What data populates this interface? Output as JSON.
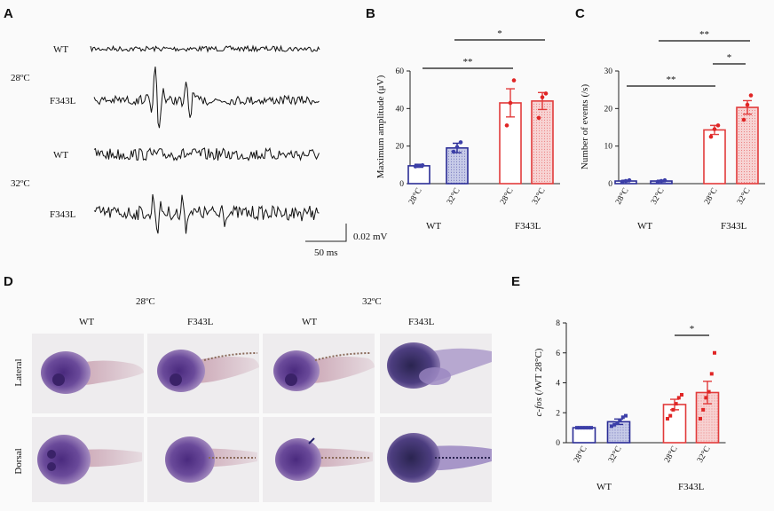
{
  "panels": {
    "A": {
      "letter": "A",
      "traces": [
        {
          "temp": "28ºC",
          "genotype": "WT"
        },
        {
          "temp": "28ºC",
          "genotype": "F343L"
        },
        {
          "temp": "32ºC",
          "genotype": "WT"
        },
        {
          "temp": "32ºC",
          "genotype": "F343L"
        }
      ],
      "temps": [
        "28ºC",
        "32ºC"
      ],
      "scalebar_v": "0.02 mV",
      "scalebar_t": "50 ms"
    },
    "B": {
      "letter": "B"
    },
    "C": {
      "letter": "C"
    },
    "D": {
      "letter": "D",
      "temps": [
        "28ºC",
        "32ºC"
      ],
      "columns": [
        "WT",
        "F343L",
        "WT",
        "F343L"
      ],
      "rows": [
        "Lateral",
        "Dorsal"
      ]
    },
    "E": {
      "letter": "E"
    }
  },
  "chart_data": [
    {
      "panel": "B",
      "type": "bar",
      "ylabel": "Maximum amplitude (μV)",
      "ylim": [
        0,
        60
      ],
      "yticks": [
        0,
        20,
        40,
        60
      ],
      "categories": [
        "28°C",
        "32°C",
        "28°C",
        "32°C"
      ],
      "groups": [
        "WT",
        "F343L"
      ],
      "values": [
        9.5,
        19,
        43,
        44
      ],
      "errors": [
        0.8,
        2.5,
        7.5,
        4.5
      ],
      "points": [
        [
          9.2,
          9.5,
          9.8
        ],
        [
          17,
          19.5,
          22
        ],
        [
          31,
          43,
          55
        ],
        [
          35,
          46,
          48
        ]
      ],
      "significance": [
        {
          "from": 0,
          "to": 2,
          "label": "**"
        },
        {
          "from": 1,
          "to": 3,
          "label": "*"
        }
      ]
    },
    {
      "panel": "C",
      "type": "bar",
      "ylabel": "Number of events (/s)",
      "ylim": [
        0,
        30
      ],
      "yticks": [
        0,
        10,
        20,
        30
      ],
      "categories": [
        "28°C",
        "32°C",
        "28°C",
        "32°C"
      ],
      "groups": [
        "WT",
        "F343L"
      ],
      "values": [
        0.7,
        0.7,
        14.3,
        20.3
      ],
      "errors": [
        0.2,
        0.2,
        1.2,
        1.8
      ],
      "points": [
        [
          0.5,
          0.7,
          0.9
        ],
        [
          0.5,
          0.7,
          0.9
        ],
        [
          12.5,
          14.5,
          15.5
        ],
        [
          17,
          21,
          23.5
        ]
      ],
      "significance": [
        {
          "from": 0,
          "to": 2,
          "label": "**"
        },
        {
          "from": 1,
          "to": 3,
          "label": "**"
        },
        {
          "from": 2,
          "to": 3,
          "label": "*"
        }
      ]
    },
    {
      "panel": "E",
      "type": "bar",
      "ylabel_italic": "c-fos",
      "ylabel_rest": " (/WT 28°C)",
      "ylim": [
        0,
        8
      ],
      "yticks": [
        0,
        2,
        4,
        6,
        8
      ],
      "categories": [
        "28°C",
        "32°C",
        "28°C",
        "32°C"
      ],
      "groups": [
        "WT",
        "F343L"
      ],
      "values": [
        1,
        1.4,
        2.55,
        3.35
      ],
      "errors": [
        0.02,
        0.18,
        0.35,
        0.75
      ],
      "points": [
        [
          1,
          1,
          1,
          1,
          1,
          1
        ],
        [
          1.1,
          1.2,
          1.3,
          1.5,
          1.7,
          1.8
        ],
        [
          1.6,
          1.8,
          2.2,
          2.6,
          3.0,
          3.2
        ],
        [
          1.6,
          2.2,
          3.0,
          3.4,
          4.6,
          6.0
        ]
      ],
      "significance": [
        {
          "from": 2,
          "to": 3,
          "label": "*"
        }
      ]
    }
  ],
  "colors": {
    "wt": "#2b2d96",
    "mut": "#e23b3b",
    "wt_fill": "#c7cbe8",
    "mut_fill": "#f7d3d3",
    "wt_dot": "#3c3fa8",
    "mut_dot": "#e02525"
  }
}
